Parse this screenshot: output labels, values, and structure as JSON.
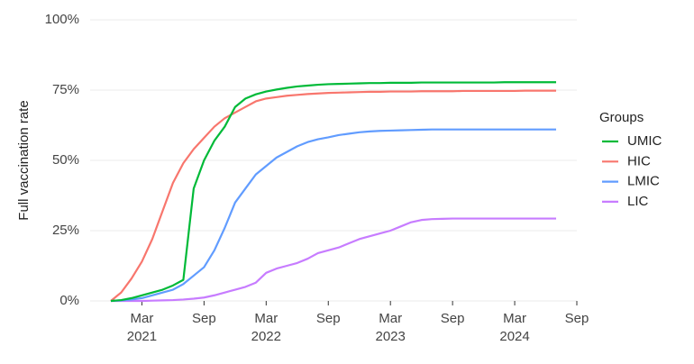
{
  "chart_data": {
    "type": "line",
    "y_label": "Full vaccination rate",
    "legend_title": "Groups",
    "legend": "right",
    "grid": true,
    "x": [
      "2020-12",
      "2021-01",
      "2021-02",
      "2021-03",
      "2021-04",
      "2021-05",
      "2021-06",
      "2021-07",
      "2021-08",
      "2021-09",
      "2021-10",
      "2021-11",
      "2021-12",
      "2022-01",
      "2022-02",
      "2022-03",
      "2022-04",
      "2022-05",
      "2022-06",
      "2022-07",
      "2022-08",
      "2022-09",
      "2022-10",
      "2022-11",
      "2022-12",
      "2023-01",
      "2023-02",
      "2023-03",
      "2023-04",
      "2023-05",
      "2023-06",
      "2023-07",
      "2023-08",
      "2023-09",
      "2023-10",
      "2023-11",
      "2023-12",
      "2024-01",
      "2024-02",
      "2024-03",
      "2024-04",
      "2024-05",
      "2024-06",
      "2024-07"
    ],
    "xlim": [
      "2020-10",
      "2024-09"
    ],
    "xticks": [
      {
        "value": "2021-03",
        "label": "Mar",
        "year": "2021"
      },
      {
        "value": "2021-09",
        "label": "Sep"
      },
      {
        "value": "2022-03",
        "label": "Mar",
        "year": "2022"
      },
      {
        "value": "2022-09",
        "label": "Sep"
      },
      {
        "value": "2023-03",
        "label": "Mar",
        "year": "2023"
      },
      {
        "value": "2023-09",
        "label": "Sep"
      },
      {
        "value": "2024-03",
        "label": "Mar",
        "year": "2024"
      },
      {
        "value": "2024-09",
        "label": "Sep"
      }
    ],
    "ylim": [
      0,
      100
    ],
    "yticks": [
      {
        "value": 0,
        "label": "0%"
      },
      {
        "value": 25,
        "label": "25%"
      },
      {
        "value": 50,
        "label": "50%"
      },
      {
        "value": 75,
        "label": "75%"
      },
      {
        "value": 100,
        "label": "100%"
      }
    ],
    "series": [
      {
        "name": "UMIC",
        "color": "#00ba38",
        "values": [
          0,
          0.3,
          1,
          2,
          3,
          4,
          5.5,
          7.5,
          40,
          50,
          57,
          62,
          69,
          72,
          73.5,
          74.5,
          75.2,
          75.8,
          76.3,
          76.6,
          76.9,
          77.1,
          77.2,
          77.3,
          77.4,
          77.5,
          77.5,
          77.6,
          77.6,
          77.6,
          77.7,
          77.7,
          77.7,
          77.7,
          77.7,
          77.7,
          77.7,
          77.7,
          77.8,
          77.8,
          77.8,
          77.8,
          77.8,
          77.8
        ]
      },
      {
        "name": "HIC",
        "color": "#f8766d",
        "values": [
          0,
          3,
          8,
          14,
          22,
          32,
          42,
          49,
          54,
          58,
          62,
          65,
          67,
          69,
          71,
          72,
          72.5,
          73,
          73.3,
          73.6,
          73.8,
          74,
          74.1,
          74.2,
          74.3,
          74.4,
          74.4,
          74.5,
          74.5,
          74.5,
          74.6,
          74.6,
          74.6,
          74.6,
          74.7,
          74.7,
          74.7,
          74.7,
          74.7,
          74.7,
          74.8,
          74.8,
          74.8,
          74.8
        ]
      },
      {
        "name": "LMIC",
        "color": "#619cff",
        "values": [
          0,
          0.2,
          0.5,
          1,
          2,
          3,
          4,
          6,
          9,
          12,
          18,
          26,
          35,
          40,
          45,
          48,
          51,
          53,
          55,
          56.5,
          57.5,
          58.2,
          59,
          59.5,
          60,
          60.3,
          60.5,
          60.6,
          60.7,
          60.8,
          60.9,
          61,
          61,
          61,
          61,
          61,
          61,
          61,
          61,
          61,
          61,
          61,
          61,
          61
        ]
      },
      {
        "name": "LIC",
        "color": "#c77cff",
        "values": [
          0,
          0,
          0,
          0,
          0.1,
          0.2,
          0.3,
          0.5,
          0.8,
          1.2,
          2,
          3,
          4,
          5,
          6.5,
          10,
          11.5,
          12.5,
          13.5,
          15,
          17,
          18,
          19,
          20.5,
          22,
          23,
          24,
          25,
          26.5,
          28,
          28.8,
          29.1,
          29.2,
          29.3,
          29.3,
          29.3,
          29.3,
          29.3,
          29.3,
          29.3,
          29.3,
          29.3,
          29.3,
          29.3
        ]
      }
    ]
  }
}
